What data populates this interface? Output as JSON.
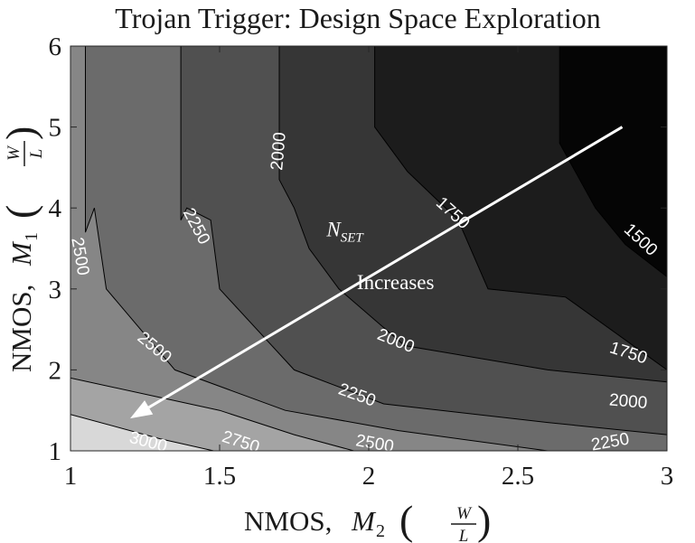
{
  "chart_data": {
    "type": "contour",
    "title": "Trojan Trigger: Design Space Exploration",
    "xlabel": {
      "prefix": "NMOS, ",
      "var": "M",
      "sub": "2",
      "frac_num": "W",
      "frac_den": "L"
    },
    "ylabel": {
      "prefix": "NMOS, ",
      "var": "M",
      "sub": "1",
      "frac_num": "W",
      "frac_den": "L"
    },
    "xlim": [
      1,
      3
    ],
    "ylim": [
      1,
      6
    ],
    "xticks": [
      1,
      1.5,
      2,
      2.5,
      3
    ],
    "xtick_labels": [
      "1",
      "1.5",
      "2",
      "2.5",
      "3"
    ],
    "yticks": [
      1,
      2,
      3,
      4,
      5,
      6
    ],
    "ytick_labels": [
      "1",
      "2",
      "3",
      "4",
      "5",
      "6"
    ],
    "grid": false,
    "levels": [
      1500,
      1750,
      2000,
      2250,
      2500,
      2750,
      3000
    ],
    "contours": [
      {
        "level": 1500,
        "points": [
          [
            2.64,
            6
          ],
          [
            2.64,
            4.8
          ],
          [
            2.76,
            4.0
          ],
          [
            2.86,
            3.55
          ],
          [
            3,
            3.15
          ]
        ]
      },
      {
        "level": 1750,
        "points": [
          [
            2.02,
            6
          ],
          [
            2.02,
            5.0
          ],
          [
            2.13,
            4.45
          ],
          [
            2.3,
            3.85
          ],
          [
            2.4,
            3.0
          ],
          [
            2.66,
            2.9
          ],
          [
            3,
            2.0
          ]
        ]
      },
      {
        "level": 2000,
        "points": [
          [
            1.7,
            6
          ],
          [
            1.7,
            4.35
          ],
          [
            1.75,
            4.0
          ],
          [
            1.8,
            3.5
          ],
          [
            1.9,
            3.0
          ],
          [
            2.12,
            2.3
          ],
          [
            2.6,
            2.0
          ],
          [
            3,
            1.85
          ]
        ]
      },
      {
        "level": 2250,
        "points": [
          [
            1.37,
            6
          ],
          [
            1.37,
            3.85
          ],
          [
            1.39,
            4.0
          ],
          [
            1.47,
            3.85
          ],
          [
            1.5,
            3.0
          ],
          [
            1.75,
            2.0
          ],
          [
            2.05,
            1.58
          ],
          [
            2.6,
            1.35
          ],
          [
            3,
            1.2
          ]
        ]
      },
      {
        "level": 2500,
        "points": [
          [
            1.05,
            6
          ],
          [
            1.05,
            3.7
          ],
          [
            1.08,
            4.0
          ],
          [
            1.12,
            3.0
          ],
          [
            1.35,
            2.0
          ],
          [
            1.72,
            1.5
          ],
          [
            2.1,
            1.25
          ],
          [
            2.6,
            1.0
          ]
        ]
      },
      {
        "level": 2750,
        "points": [
          [
            1.0,
            1.9
          ],
          [
            1.5,
            1.5
          ],
          [
            1.75,
            1.2
          ],
          [
            1.95,
            1.0
          ]
        ]
      },
      {
        "level": 3000,
        "points": [
          [
            1.0,
            1.45
          ],
          [
            1.3,
            1.15
          ],
          [
            1.48,
            1.0
          ]
        ]
      }
    ],
    "region_shades": [
      {
        "band": "<1500",
        "color": "#050505"
      },
      {
        "band": "1500-1750",
        "color": "#1c1c1c"
      },
      {
        "band": "1750-2000",
        "color": "#363636"
      },
      {
        "band": "2000-2250",
        "color": "#505050"
      },
      {
        "band": "2250-2500",
        "color": "#6b6b6b"
      },
      {
        "band": "2500-2750",
        "color": "#868686"
      },
      {
        "band": "2750-3000",
        "color": "#a4a4a4"
      },
      {
        "band": ">3000",
        "color": "#d8d8d8"
      }
    ],
    "contour_labels": [
      {
        "text": "1500",
        "x": 2.91,
        "y": 3.6,
        "angle": 43
      },
      {
        "text": "1750",
        "x": 2.28,
        "y": 3.93,
        "angle": 42
      },
      {
        "text": "1750",
        "x": 2.87,
        "y": 2.2,
        "angle": 18
      },
      {
        "text": "2000",
        "x": 1.7,
        "y": 4.7,
        "angle": -85
      },
      {
        "text": "2000",
        "x": 2.09,
        "y": 2.35,
        "angle": 22
      },
      {
        "text": "2000",
        "x": 2.87,
        "y": 1.6,
        "angle": 5
      },
      {
        "text": "2250",
        "x": 1.42,
        "y": 3.77,
        "angle": 62
      },
      {
        "text": "2250",
        "x": 1.96,
        "y": 1.68,
        "angle": 20
      },
      {
        "text": "2250",
        "x": 2.81,
        "y": 1.1,
        "angle": -10
      },
      {
        "text": "2500",
        "x": 1.03,
        "y": 3.4,
        "angle": 80
      },
      {
        "text": "2500",
        "x": 1.28,
        "y": 2.27,
        "angle": 40
      },
      {
        "text": "2500",
        "x": 2.02,
        "y": 1.08,
        "angle": 10
      },
      {
        "text": "2750",
        "x": 1.57,
        "y": 1.1,
        "angle": 18
      },
      {
        "text": "3000",
        "x": 1.26,
        "y": 1.1,
        "angle": 15
      }
    ],
    "annotations": [
      {
        "type": "arrow",
        "from": [
          2.85,
          5.0
        ],
        "to": [
          1.2,
          1.4
        ],
        "color": "#ffffff"
      },
      {
        "type": "text",
        "text": "N",
        "sub": "SET",
        "x": 1.92,
        "y": 3.65
      },
      {
        "type": "text",
        "text": "Increases",
        "x": 2.09,
        "y": 3.0
      }
    ]
  }
}
